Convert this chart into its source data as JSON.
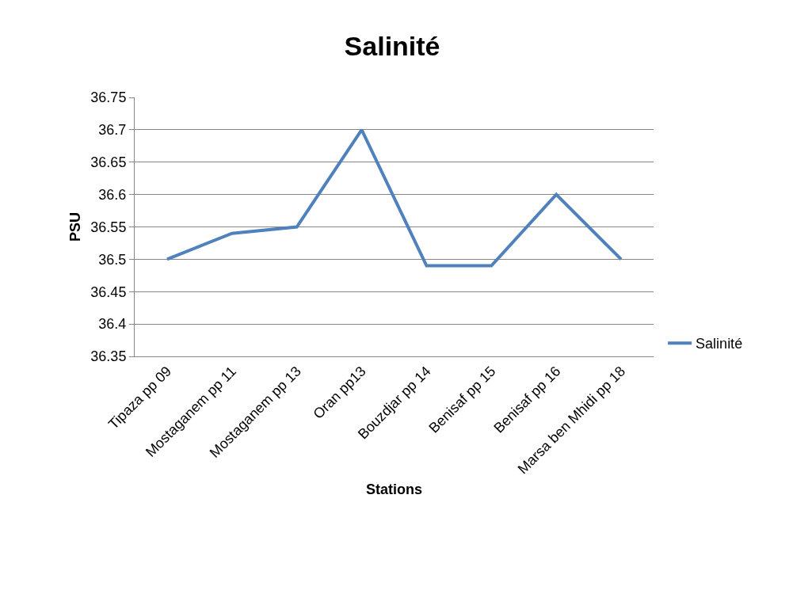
{
  "chart_data": {
    "type": "line",
    "title": "Salinité",
    "xlabel": "Stations",
    "ylabel": "PSU",
    "categories": [
      "Tipaza pp 09",
      "Mostaganem pp 11",
      "Mostaganem pp 13",
      "Oran pp13",
      "Bouzdjar pp 14",
      "Benisaf pp 15",
      "Benisaf pp 16",
      "Marsa ben Mhidi pp 18"
    ],
    "series": [
      {
        "name": "Salinité",
        "color": "#4f81bd",
        "values": [
          36.5,
          36.54,
          36.55,
          36.7,
          36.49,
          36.49,
          36.6,
          36.5
        ]
      }
    ],
    "ylim": [
      36.35,
      36.75
    ],
    "yticks": [
      36.35,
      36.4,
      36.45,
      36.5,
      36.55,
      36.6,
      36.65,
      36.7,
      36.75
    ],
    "grid": "y",
    "legend": "right",
    "marker": "none",
    "line_style": "solid"
  }
}
